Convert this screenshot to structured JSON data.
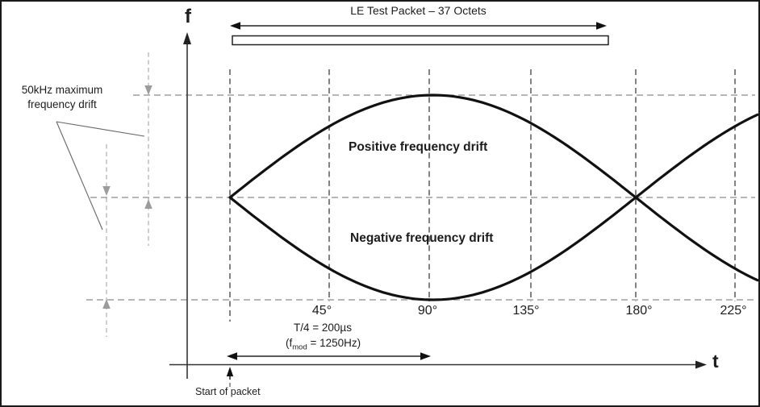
{
  "packet": {
    "label": "LE Test Packet – 37 Octets"
  },
  "axis": {
    "f": "f",
    "t": "t"
  },
  "x_ticks": [
    "45°",
    "90°",
    "135°",
    "180°",
    "225°"
  ],
  "annotations": {
    "drift_note_line1": "50kHz maximum",
    "drift_note_line2": "frequency drift",
    "positive_drift": "Positive frequency drift",
    "negative_drift": "Negative frequency drift",
    "t_quarter": "T/4 = 200µs",
    "f_mod_prefix": "(f",
    "f_mod_sub": "mod",
    "f_mod_suffix": " = 1250Hz)",
    "start_of_packet": "Start of packet"
  },
  "colors": {
    "packet_fill": "#d3f1f5",
    "curve": "#111111",
    "grid_dark": "#4d4d4d",
    "grid_gray": "#8c8c8c",
    "annotation_gray": "#b3b3b3",
    "arrow_gray": "#9c9c9c"
  }
}
